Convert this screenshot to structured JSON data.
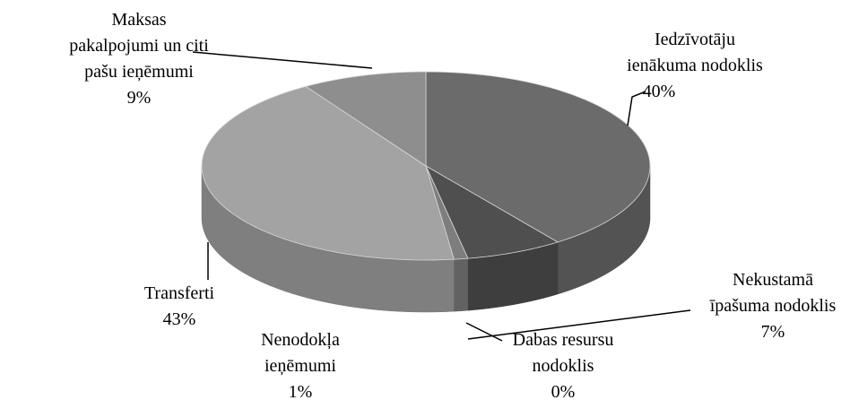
{
  "chart_data": {
    "type": "pie3d",
    "categories": [
      "Iedzīvotāju ienākuma nodoklis",
      "Nekustamā īpašuma nodoklis",
      "Dabas resursu nodoklis",
      "Nenodokļa ieņēmumi",
      "Transferti",
      "Maksas pakalpojumi un citi pašu ieņēmumi"
    ],
    "values": [
      40,
      7,
      0,
      1,
      43,
      9
    ],
    "value_labels": [
      "40%",
      "7%",
      "0%",
      "1%",
      "43%",
      "9%"
    ],
    "colors": [
      "#6b6b6b",
      "#4f4f4f",
      "#c8c8c8",
      "#7d7d7d",
      "#a3a3a3",
      "#8e8e8e"
    ]
  }
}
